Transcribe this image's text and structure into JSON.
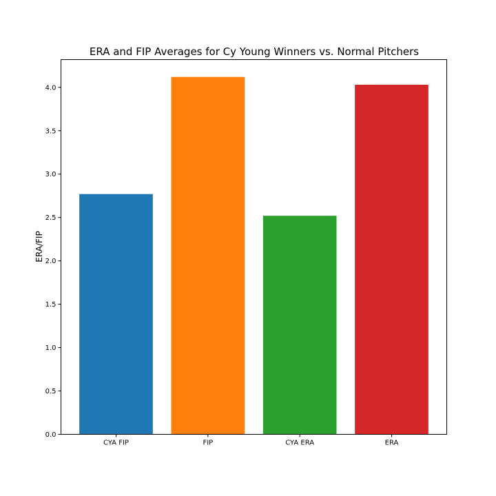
{
  "chart_data": {
    "type": "bar",
    "title": "ERA and FIP Averages for Cy Young Winners vs. Normal Pitchers",
    "xlabel": "",
    "ylabel": "ERA/FIP",
    "categories": [
      "CYA FIP",
      "FIP",
      "CYA ERA",
      "ERA"
    ],
    "values": [
      2.77,
      4.12,
      2.52,
      4.03
    ],
    "colors": [
      "#1f77b4",
      "#ff7f0e",
      "#2ca02c",
      "#d62728"
    ],
    "ylim": [
      0,
      4.32
    ],
    "yticks": [
      0.0,
      0.5,
      1.0,
      1.5,
      2.0,
      2.5,
      3.0,
      3.5,
      4.0
    ],
    "ytick_labels": [
      "0.0",
      "0.5",
      "1.0",
      "1.5",
      "2.0",
      "2.5",
      "3.0",
      "3.5",
      "4.0"
    ],
    "grid": false,
    "legend": "none"
  }
}
